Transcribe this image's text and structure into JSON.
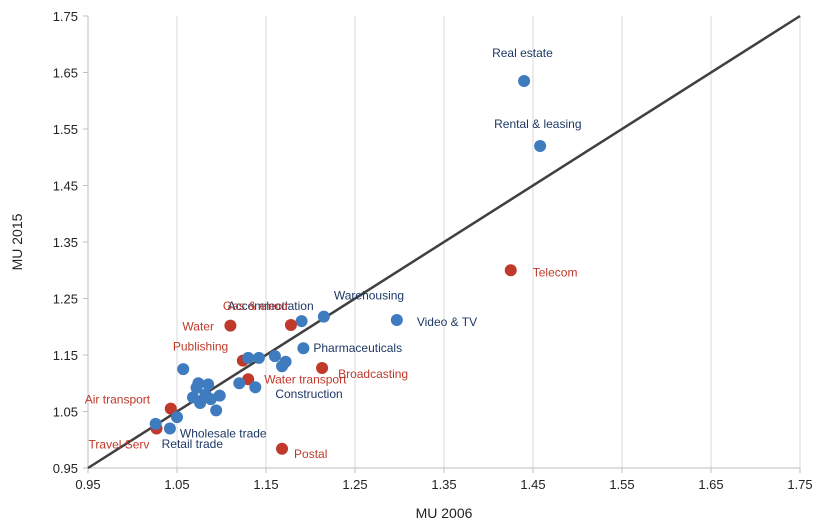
{
  "chart_data": {
    "type": "scatter",
    "title": "",
    "xlabel": "MU 2006",
    "ylabel": "MU 2015",
    "xlim": [
      0.95,
      1.75
    ],
    "ylim": [
      0.95,
      1.75
    ],
    "x_ticks": [
      "0.95",
      "1.05",
      "1.15",
      "1.25",
      "1.35",
      "1.45",
      "1.55",
      "1.65",
      "1.75"
    ],
    "y_ticks": [
      "0.95",
      "1.05",
      "1.15",
      "1.25",
      "1.35",
      "1.45",
      "1.55",
      "1.65",
      "1.75"
    ],
    "grid": "vertical",
    "reference_line": {
      "from": [
        0.95,
        0.95
      ],
      "to": [
        1.75,
        1.75
      ],
      "color": "#404040"
    },
    "colors": {
      "blue": "#3f7bbf",
      "red": "#c0392b",
      "label_blue": "#1f3864",
      "label_red": "#c0392b"
    },
    "points": [
      {
        "x": 1.44,
        "y": 1.635,
        "color": "blue",
        "label": "Real estate"
      },
      {
        "x": 1.458,
        "y": 1.52,
        "color": "blue",
        "label": "Rental & leasing"
      },
      {
        "x": 1.425,
        "y": 1.3,
        "color": "red",
        "label": "Telecom"
      },
      {
        "x": 1.297,
        "y": 1.212,
        "color": "blue",
        "label": "Video & TV"
      },
      {
        "x": 1.215,
        "y": 1.218,
        "color": "blue",
        "label": "Warehousing"
      },
      {
        "x": 1.19,
        "y": 1.21,
        "color": "blue",
        "label": "Accommodation"
      },
      {
        "x": 1.178,
        "y": 1.203,
        "color": "red",
        "label": "Gas & electr"
      },
      {
        "x": 1.11,
        "y": 1.202,
        "color": "red",
        "label": "Water"
      },
      {
        "x": 1.192,
        "y": 1.162,
        "color": "blue",
        "label": "Pharmaceuticals"
      },
      {
        "x": 1.213,
        "y": 1.127,
        "color": "red",
        "label": "Broadcasting"
      },
      {
        "x": 1.124,
        "y": 1.14,
        "color": "red",
        "label": "Publishing"
      },
      {
        "x": 1.13,
        "y": 1.107,
        "color": "red",
        "label": "Water transport"
      },
      {
        "x": 1.138,
        "y": 1.093,
        "color": "blue",
        "label": "Construction"
      },
      {
        "x": 1.043,
        "y": 1.055,
        "color": "red",
        "label": "Air transport"
      },
      {
        "x": 1.027,
        "y": 1.02,
        "color": "red",
        "label": "Travel Serv"
      },
      {
        "x": 1.042,
        "y": 1.02,
        "color": "blue",
        "label": "Wholesale trade"
      },
      {
        "x": 1.026,
        "y": 1.028,
        "color": "blue",
        "label": "Retail trade"
      },
      {
        "x": 1.168,
        "y": 0.984,
        "color": "red",
        "label": "Postal"
      },
      {
        "x": 1.057,
        "y": 1.125,
        "color": "blue",
        "label": ""
      },
      {
        "x": 1.068,
        "y": 1.075,
        "color": "blue",
        "label": ""
      },
      {
        "x": 1.072,
        "y": 1.092,
        "color": "blue",
        "label": ""
      },
      {
        "x": 1.074,
        "y": 1.1,
        "color": "blue",
        "label": ""
      },
      {
        "x": 1.076,
        "y": 1.065,
        "color": "blue",
        "label": ""
      },
      {
        "x": 1.082,
        "y": 1.08,
        "color": "blue",
        "label": ""
      },
      {
        "x": 1.085,
        "y": 1.098,
        "color": "blue",
        "label": ""
      },
      {
        "x": 1.088,
        "y": 1.072,
        "color": "blue",
        "label": ""
      },
      {
        "x": 1.094,
        "y": 1.052,
        "color": "blue",
        "label": ""
      },
      {
        "x": 1.098,
        "y": 1.078,
        "color": "blue",
        "label": ""
      },
      {
        "x": 1.05,
        "y": 1.04,
        "color": "blue",
        "label": ""
      },
      {
        "x": 1.12,
        "y": 1.1,
        "color": "blue",
        "label": ""
      },
      {
        "x": 1.13,
        "y": 1.145,
        "color": "blue",
        "label": ""
      },
      {
        "x": 1.142,
        "y": 1.145,
        "color": "blue",
        "label": ""
      },
      {
        "x": 1.16,
        "y": 1.148,
        "color": "blue",
        "label": ""
      },
      {
        "x": 1.172,
        "y": 1.138,
        "color": "blue",
        "label": ""
      },
      {
        "x": 1.168,
        "y": 1.13,
        "color": "blue",
        "label": ""
      }
    ]
  }
}
